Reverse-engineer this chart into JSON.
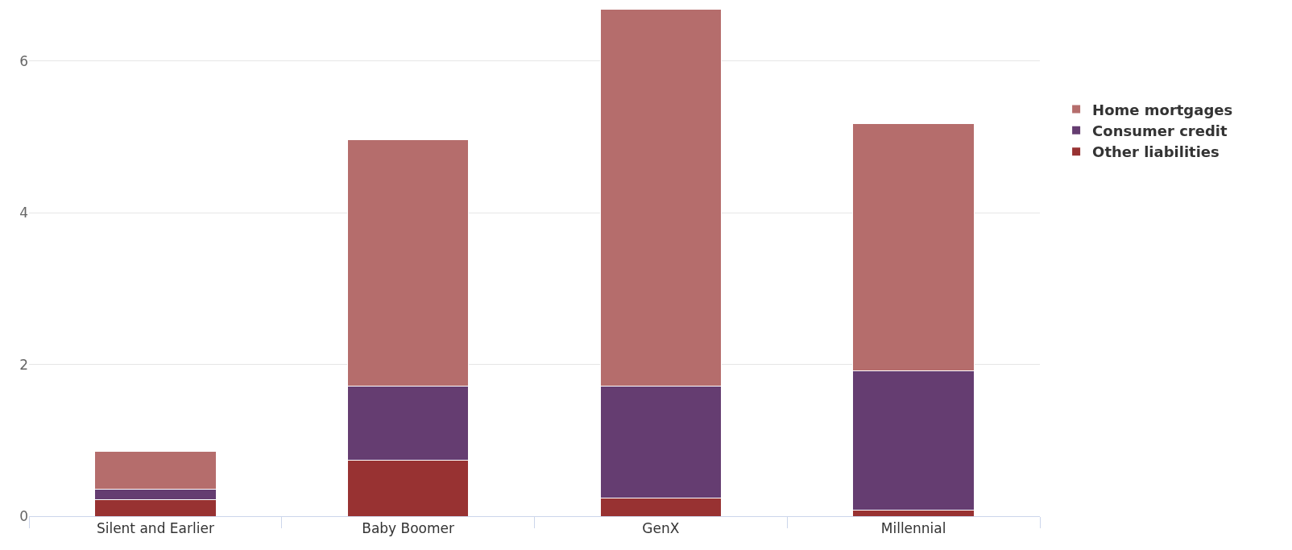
{
  "chart_data": {
    "type": "bar",
    "stacked": true,
    "categories": [
      "Silent and Earlier",
      "Baby Boomer",
      "GenX",
      "Millennial"
    ],
    "series": [
      {
        "name": "Other liabilities",
        "color": "#983232",
        "values": [
          0.22,
          0.74,
          0.24,
          0.08
        ]
      },
      {
        "name": "Consumer credit",
        "color": "#653d71",
        "values": [
          0.14,
          0.97,
          1.47,
          1.84
        ]
      },
      {
        "name": "Home mortgages",
        "color": "#b56d6c",
        "values": [
          0.5,
          3.25,
          4.97,
          3.26
        ]
      }
    ],
    "ylim": [
      0,
      6.7
    ],
    "yticks": [
      0,
      2,
      4,
      6
    ],
    "grid": "y",
    "legend": "top right"
  }
}
